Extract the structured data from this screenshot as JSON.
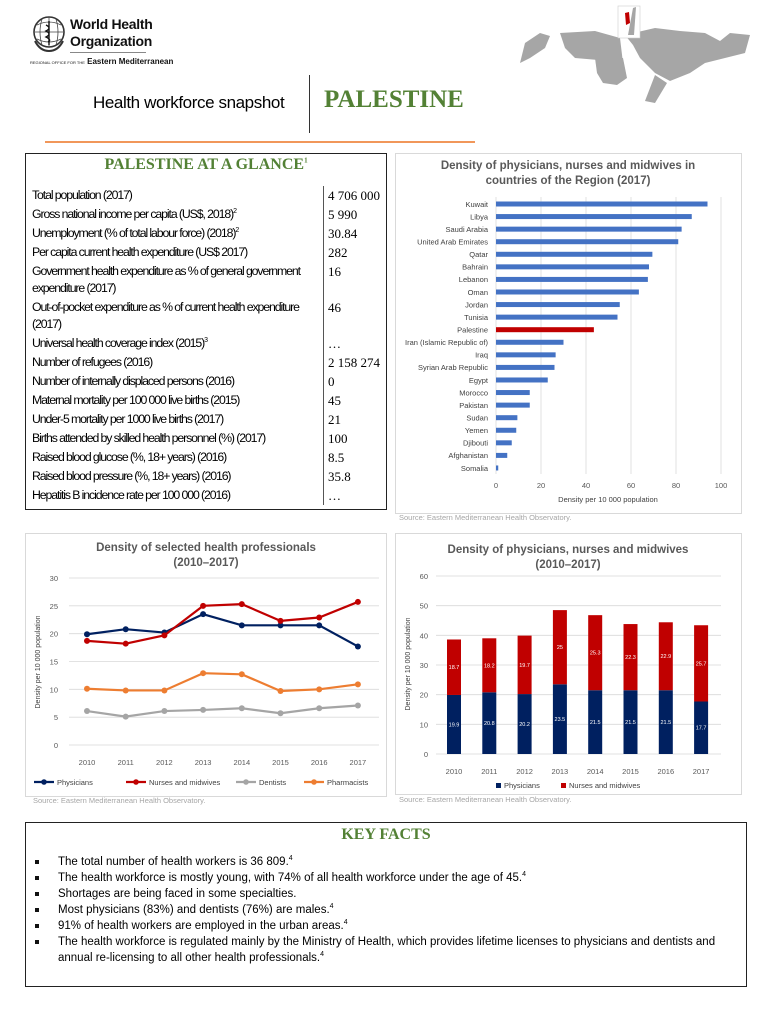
{
  "header": {
    "org_line1": "World Health",
    "org_line2": "Organization",
    "regional_prefix": "REGIONAL OFFICE FOR THE",
    "regional_name": "Eastern Mediterranean",
    "snapshot_label": "Health workforce snapshot",
    "country": "PALESTINE",
    "colors": {
      "country": "#538135",
      "rule": "#ed7d31",
      "map_highlight": "#c00000"
    }
  },
  "glance": {
    "title": "PALESTINE AT A GLANCE",
    "title_note": "1",
    "rows": [
      {
        "label": "Total population (2017)",
        "note": "",
        "value": "4 706 000"
      },
      {
        "label": "Gross national income per capita (US$, 2018)",
        "note": "2",
        "value": "5 990"
      },
      {
        "label": "Unemployment (% of total labour force) (2018)",
        "note": "2",
        "value": "30.84"
      },
      {
        "label": "Per capita current health expenditure (US$ 2017)",
        "note": "",
        "value": "282"
      },
      {
        "label": "Government health expenditure as % of general government expenditure (2017)",
        "note": "",
        "value": "16"
      },
      {
        "label": "Out-of-pocket expenditure as % of current health expenditure (2017)",
        "note": "",
        "value": "46"
      },
      {
        "label": "Universal health coverage index (2015)",
        "note": "3",
        "value": "…"
      },
      {
        "label": "Number of refugees (2016)",
        "note": "",
        "value": "2 158 274"
      },
      {
        "label": "Number of internally displaced persons (2016)",
        "note": "",
        "value": "0"
      },
      {
        "label": "Maternal mortality per 100 000 live births (2015)",
        "note": "",
        "value": "45"
      },
      {
        "label": "Under-5 mortality per 1000 live births (2017)",
        "note": "",
        "value": "21"
      },
      {
        "label": "Births attended by skilled health personnel (%) (2017)",
        "note": "",
        "value": "100"
      },
      {
        "label": "Raised blood glucose (%, 18+ years) (2016)",
        "note": "",
        "value": "8.5"
      },
      {
        "label": "Raised blood pressure (%, 18+ years) (2016)",
        "note": "",
        "value": "35.8"
      },
      {
        "label": "Hepatitis B incidence rate per 100 000 (2016)",
        "note": "",
        "value": "…"
      }
    ]
  },
  "chart_data": [
    {
      "type": "bar",
      "orientation": "horizontal",
      "title": "Density of physicians, nurses and midwives in countries of the Region (2017)",
      "title_lines": [
        "Density of physicians, nurses and midwives in",
        "countries of the Region (2017)"
      ],
      "xlabel": "Density per 10 000 population",
      "xlim": [
        0,
        100
      ],
      "xticks": [
        "0",
        "20",
        "40",
        "60",
        "80",
        "100"
      ],
      "grid": true,
      "colors": {
        "default": "#4472c4",
        "highlight": "#c00000"
      },
      "highlight": "Palestine",
      "categories": [
        "Kuwait",
        "Libya",
        "Saudi Arabia",
        "United Arab Emirates",
        "Qatar",
        "Bahrain",
        "Lebanon",
        "Oman",
        "Jordan",
        "Tunisia",
        "Palestine",
        "Iran (Islamic Republic of)",
        "Iraq",
        "Syrian Arab Republic",
        "Egypt",
        "Morocco",
        "Pakistan",
        "Sudan",
        "Yemen",
        "Djibouti",
        "Afghanistan",
        "Somalia"
      ],
      "values": [
        94,
        87,
        82.5,
        81,
        69.5,
        68,
        67.5,
        63.5,
        55,
        54,
        43.5,
        30,
        26.5,
        26,
        23,
        15,
        15,
        9.5,
        9,
        7,
        5,
        1
      ],
      "source": "Source: Eastern Mediterranean Health Observatory."
    },
    {
      "type": "line",
      "title": "Density of selected health professionals (2010–2017)",
      "title_lines": [
        "Density of selected health professionals",
        "(2010–2017)"
      ],
      "ylabel": "Density per 10 000 population",
      "ylim": [
        0,
        30
      ],
      "yticks": [
        "0",
        "5",
        "10",
        "15",
        "20",
        "25",
        "30"
      ],
      "grid": true,
      "legend": "bottom",
      "x": [
        "2010",
        "2011",
        "2012",
        "2013",
        "2014",
        "2015",
        "2016",
        "2017"
      ],
      "series": [
        {
          "name": "Physicians",
          "color": "#002060",
          "values": [
            19.9,
            20.8,
            20.2,
            23.5,
            21.5,
            21.5,
            21.5,
            17.7
          ]
        },
        {
          "name": "Nurses and midwives",
          "color": "#c00000",
          "values": [
            18.7,
            18.2,
            19.7,
            25,
            25.3,
            22.3,
            22.9,
            25.7
          ]
        },
        {
          "name": "Dentists",
          "color": "#a5a5a5",
          "values": [
            6.1,
            5.1,
            6.1,
            6.3,
            6.6,
            5.7,
            6.6,
            7.1
          ]
        },
        {
          "name": "Pharmacists",
          "color": "#ed7d31",
          "values": [
            10.1,
            9.8,
            9.8,
            12.9,
            12.7,
            9.7,
            10.0,
            10.9
          ]
        }
      ],
      "source": "Source: Eastern Mediterranean Health Observatory."
    },
    {
      "type": "bar",
      "stacked": true,
      "title": "Density of physicians, nurses and midwives (2010–2017)",
      "title_lines": [
        "Density of physicians, nurses and midwives",
        "(2010–2017)"
      ],
      "ylabel": "Density per 10 000 population",
      "ylim": [
        0,
        60
      ],
      "yticks": [
        "0",
        "10",
        "20",
        "30",
        "40",
        "50",
        "60"
      ],
      "grid": true,
      "legend": "bottom",
      "categories": [
        "2010",
        "2011",
        "2012",
        "2013",
        "2014",
        "2015",
        "2016",
        "2017"
      ],
      "series": [
        {
          "name": "Physicians",
          "color": "#002060",
          "values": [
            19.9,
            20.8,
            20.2,
            23.5,
            21.5,
            21.5,
            21.5,
            17.7
          ]
        },
        {
          "name": "Nurses and midwives",
          "color": "#c00000",
          "values": [
            18.7,
            18.2,
            19.7,
            25,
            25.3,
            22.3,
            22.9,
            25.7
          ]
        }
      ],
      "source": "Source: Eastern Mediterranean Health Observatory."
    }
  ],
  "key_facts": {
    "title": "KEY FACTS",
    "items": [
      {
        "text": "The total number of health workers is 36 809.",
        "note": "4"
      },
      {
        "text": "The health workforce is mostly young, with 74% of all health workforce under the age of 45.",
        "note": "4"
      },
      {
        "text": "Shortages are being faced in some specialties.",
        "note": ""
      },
      {
        "text": "Most physicians (83%) and dentists (76%) are males.",
        "note": "4"
      },
      {
        "text": "91% of health workers are employed in the urban areas.",
        "note": "4"
      },
      {
        "text": "The health workforce is regulated mainly by the Ministry of Health, which provides lifetime licenses to physicians and dentists and annual re-licensing to all other health professionals.",
        "note": "4"
      }
    ]
  }
}
